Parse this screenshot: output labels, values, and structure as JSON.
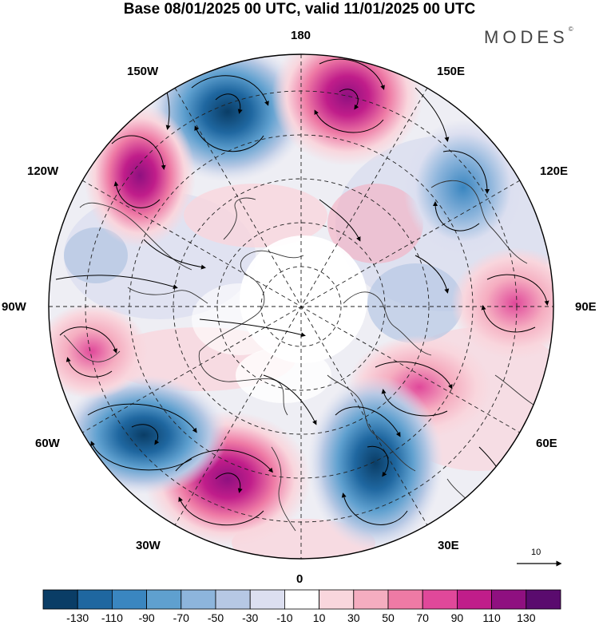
{
  "title": "Base 08/01/2025 00 UTC, valid 11/01/2025 00 UTC",
  "brand": {
    "name": "MODES",
    "mark": "©"
  },
  "longitude_labels": {
    "top": "180",
    "bottom": "0",
    "left": "90W",
    "right": "90E",
    "upper_left_outer": "150W",
    "upper_left_inner": "120W",
    "upper_right_outer": "150E",
    "upper_right_inner": "120E",
    "lower_left_inner": "60W",
    "lower_left_outer": "30W",
    "lower_right_inner": "60E",
    "lower_right_outer": "30E"
  },
  "vector_reference": {
    "label": "10"
  },
  "colorbar": {
    "colors": [
      "#0a3d66",
      "#1f67a0",
      "#3a86c0",
      "#5fa0cf",
      "#8db5dc",
      "#b6c8e4",
      "#dcdff0",
      "#ffffff",
      "#f9d6dd",
      "#f5adc0",
      "#ee7aa5",
      "#e0489a",
      "#c01d8a",
      "#8f1080",
      "#5a0b6e"
    ],
    "tick_labels": [
      "-130",
      "-110",
      "-90",
      "-70",
      "-50",
      "-30",
      "-10",
      "10",
      "30",
      "50",
      "70",
      "90",
      "110",
      "130"
    ]
  },
  "anomaly_centers": [
    {
      "sign": "negative",
      "near": "150W-180",
      "level": "-110"
    },
    {
      "sign": "positive",
      "near": "180-150E",
      "level": "110"
    },
    {
      "sign": "positive",
      "near": "120W-150W",
      "level": "90"
    },
    {
      "sign": "negative",
      "near": "120E",
      "level": "-70"
    },
    {
      "sign": "positive",
      "near": "90E",
      "level": "70"
    },
    {
      "sign": "positive",
      "near": "60E",
      "level": "70"
    },
    {
      "sign": "negative",
      "near": "30E",
      "level": "-110"
    },
    {
      "sign": "positive",
      "near": "30W",
      "level": "90"
    },
    {
      "sign": "negative",
      "near": "60W",
      "level": "-110"
    },
    {
      "sign": "positive",
      "near": "90W",
      "level": "50"
    }
  ]
}
